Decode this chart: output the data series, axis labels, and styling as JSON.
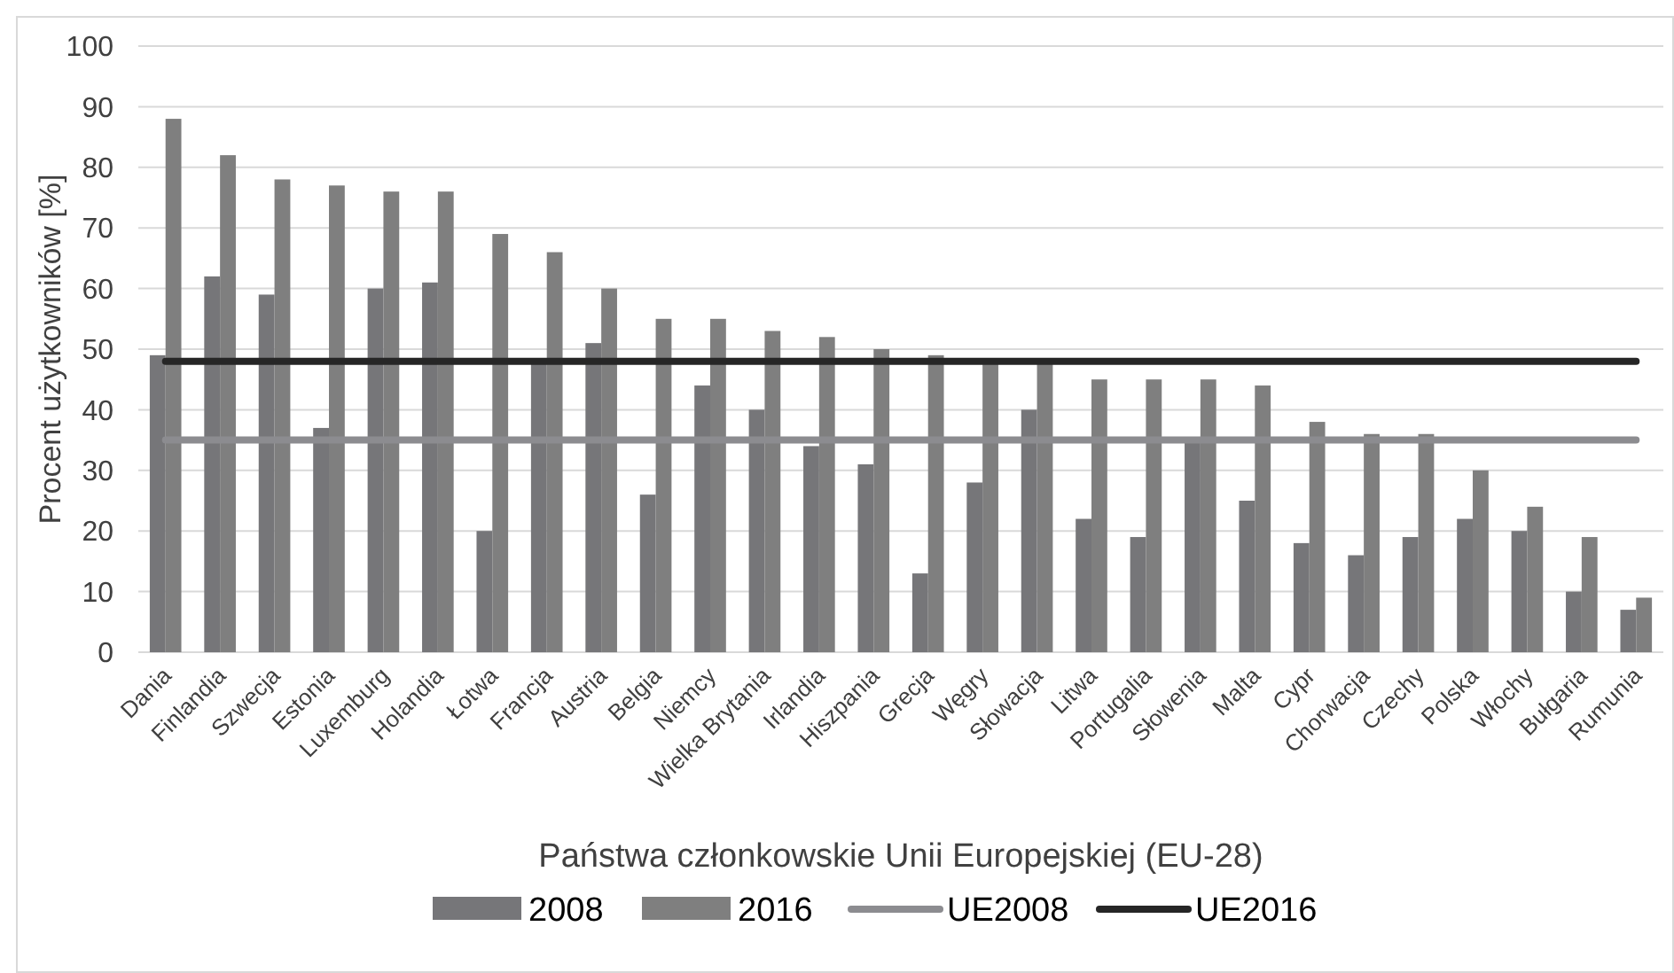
{
  "chart_data": {
    "type": "bar",
    "xlabel": "Państwa członkowskie Unii Europejskiej (EU-28)",
    "ylabel": "Procent użytkowników [%]",
    "categories": [
      "Dania",
      "Finlandia",
      "Szwecja",
      "Estonia",
      "Luxemburg",
      "Holandia",
      "Łotwa",
      "Francja",
      "Austria",
      "Belgia",
      "Niemcy",
      "Wielka Brytania",
      "Irlandia",
      "Hiszpania",
      "Grecja",
      "Węgry",
      "Słowacja",
      "Litwa",
      "Portugalia",
      "Słowenia",
      "Malta",
      "Cypr",
      "Chorwacja",
      "Czechy",
      "Polska",
      "Włochy",
      "Bułgaria",
      "Rumunia"
    ],
    "series": [
      {
        "name": "2008",
        "color": "#767679",
        "values": [
          49,
          62,
          59,
          37,
          60,
          61,
          20,
          48,
          51,
          26,
          44,
          40,
          34,
          31,
          13,
          28,
          40,
          22,
          19,
          35,
          25,
          18,
          16,
          19,
          22,
          20,
          10,
          7
        ]
      },
      {
        "name": "2016",
        "color": "#7f7f7f",
        "values": [
          88,
          82,
          78,
          77,
          76,
          76,
          69,
          66,
          60,
          55,
          55,
          53,
          52,
          50,
          49,
          48,
          48,
          45,
          45,
          45,
          44,
          38,
          36,
          36,
          30,
          24,
          19,
          9
        ]
      },
      {
        "name": "UE2008",
        "type": "line",
        "color": "#8c8c90",
        "values": [
          35,
          35,
          35,
          35,
          35,
          35,
          35,
          35,
          35,
          35,
          35,
          35,
          35,
          35,
          35,
          35,
          35,
          35,
          35,
          35,
          35,
          35,
          35,
          35,
          35,
          35,
          35,
          35
        ]
      },
      {
        "name": "UE2016",
        "type": "line",
        "color": "#262626",
        "values": [
          48,
          48,
          48,
          48,
          48,
          48,
          48,
          48,
          48,
          48,
          48,
          48,
          48,
          48,
          48,
          48,
          48,
          48,
          48,
          48,
          48,
          48,
          48,
          48,
          48,
          48,
          48,
          48
        ]
      }
    ],
    "ylim": [
      0,
      100
    ],
    "yticks": [
      0,
      10,
      20,
      30,
      40,
      50,
      60,
      70,
      80,
      90,
      100
    ],
    "grid": "y",
    "legend": "bottom"
  }
}
